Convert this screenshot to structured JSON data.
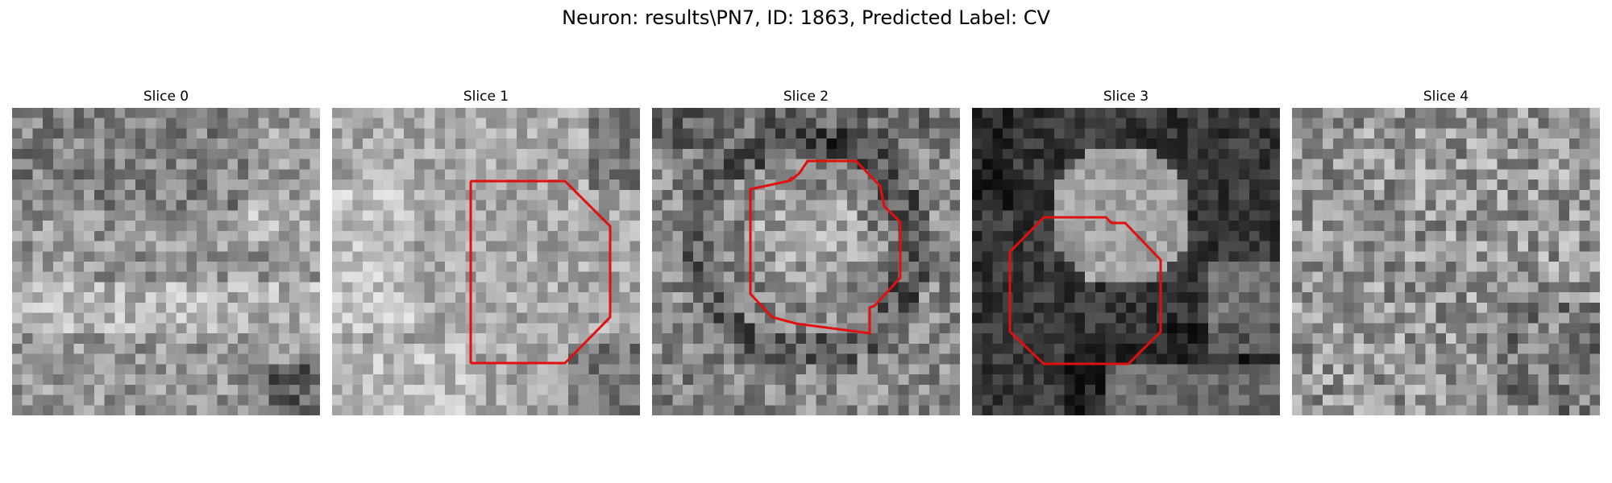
{
  "figure": {
    "title": "Neuron: results\\PN7, ID: 1863, Predicted Label: CV"
  },
  "slices": [
    {
      "title": "Slice 0",
      "has_outline": false
    },
    {
      "title": "Slice 1",
      "has_outline": true
    },
    {
      "title": "Slice 2",
      "has_outline": true
    },
    {
      "title": "Slice 3",
      "has_outline": true
    },
    {
      "title": "Slice 4",
      "has_outline": false
    }
  ],
  "colors": {
    "outline": "#e01010",
    "background": "#ffffff"
  },
  "colormap": "grayscale"
}
